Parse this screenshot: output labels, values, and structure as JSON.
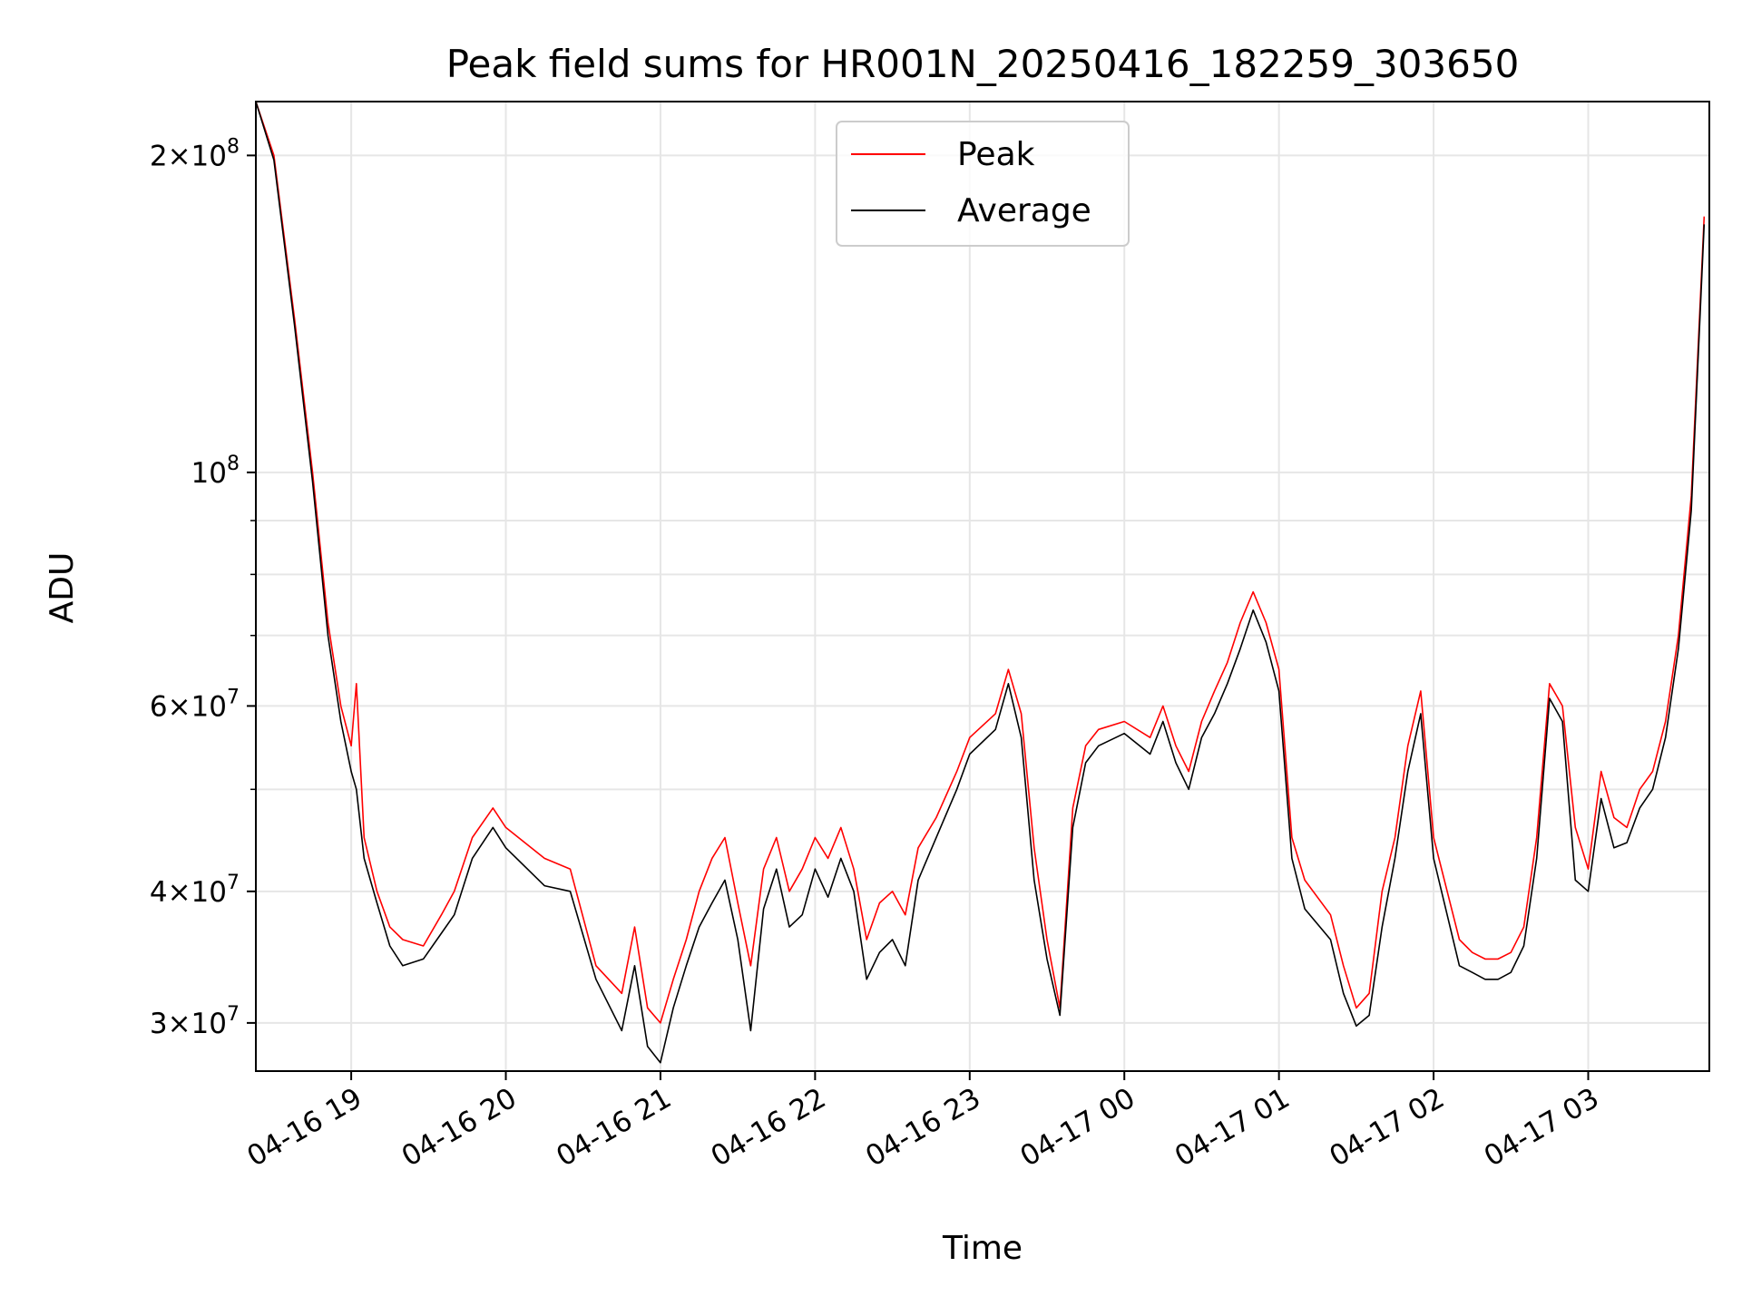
{
  "chart_data": {
    "type": "line",
    "title": "Peak field sums for HR001N_20250416_182259_303650",
    "xlabel": "Time",
    "ylabel": "ADU",
    "yscale": "log",
    "xlim": [
      "04-16 18:23",
      "04-17 03:47"
    ],
    "ylim": [
      27000000,
      225000000
    ],
    "grid": true,
    "legend_position": "top-center",
    "x_ticks": [
      "04-16 19",
      "04-16 20",
      "04-16 21",
      "04-16 22",
      "04-16 23",
      "04-17 00",
      "04-17 01",
      "04-17 02",
      "04-17 03"
    ],
    "y_ticks": [
      {
        "value": 30000000,
        "mant": "3",
        "exp": "7"
      },
      {
        "value": 40000000,
        "mant": "4",
        "exp": "7"
      },
      {
        "value": 60000000,
        "mant": "6",
        "exp": "7"
      },
      {
        "value": 100000000,
        "mant": "",
        "exp": "8"
      },
      {
        "value": 200000000,
        "mant": "2",
        "exp": "8"
      }
    ],
    "y_minor_ticks": [
      50000000,
      70000000,
      80000000,
      90000000
    ],
    "colors": {
      "peak": "#ff0000",
      "average": "#000000",
      "grid": "#e6e6e6"
    },
    "series": [
      {
        "name": "Peak",
        "color": "#ff0000",
        "x": [
          "04-16 18:23",
          "04-16 18:30",
          "04-16 18:38",
          "04-16 18:45",
          "04-16 18:51",
          "04-16 18:56",
          "04-16 19:00",
          "04-16 19:02",
          "04-16 19:05",
          "04-16 19:10",
          "04-16 19:15",
          "04-16 19:20",
          "04-16 19:28",
          "04-16 19:35",
          "04-16 19:40",
          "04-16 19:47",
          "04-16 19:55",
          "04-16 20:00",
          "04-16 20:15",
          "04-16 20:25",
          "04-16 20:35",
          "04-16 20:45",
          "04-16 20:50",
          "04-16 20:55",
          "04-16 21:00",
          "04-16 21:05",
          "04-16 21:10",
          "04-16 21:15",
          "04-16 21:20",
          "04-16 21:25",
          "04-16 21:30",
          "04-16 21:35",
          "04-16 21:40",
          "04-16 21:45",
          "04-16 21:50",
          "04-16 21:55",
          "04-16 22:00",
          "04-16 22:05",
          "04-16 22:10",
          "04-16 22:15",
          "04-16 22:20",
          "04-16 22:25",
          "04-16 22:30",
          "04-16 22:35",
          "04-16 22:40",
          "04-16 22:47",
          "04-16 22:55",
          "04-16 23:00",
          "04-16 23:10",
          "04-16 23:15",
          "04-16 23:20",
          "04-16 23:25",
          "04-16 23:30",
          "04-16 23:35",
          "04-16 23:40",
          "04-16 23:45",
          "04-16 23:50",
          "04-17 00:00",
          "04-17 00:10",
          "04-17 00:15",
          "04-17 00:20",
          "04-17 00:25",
          "04-17 00:30",
          "04-17 00:35",
          "04-17 00:40",
          "04-17 00:45",
          "04-17 00:50",
          "04-17 00:55",
          "04-17 01:00",
          "04-17 01:05",
          "04-17 01:10",
          "04-17 01:20",
          "04-17 01:25",
          "04-17 01:30",
          "04-17 01:35",
          "04-17 01:40",
          "04-17 01:45",
          "04-17 01:50",
          "04-17 01:55",
          "04-17 02:00",
          "04-17 02:10",
          "04-17 02:15",
          "04-17 02:20",
          "04-17 02:25",
          "04-17 02:30",
          "04-17 02:35",
          "04-17 02:40",
          "04-17 02:45",
          "04-17 02:50",
          "04-17 02:55",
          "04-17 03:00",
          "04-17 03:05",
          "04-17 03:10",
          "04-17 03:15",
          "04-17 03:20",
          "04-17 03:25",
          "04-17 03:30",
          "04-17 03:35",
          "04-17 03:40",
          "04-17 03:45"
        ],
        "y": [
          225000000,
          200000000,
          140000000,
          100000000,
          72000000,
          60000000,
          55000000,
          63000000,
          45000000,
          40000000,
          37000000,
          36000000,
          35500000,
          38000000,
          40000000,
          45000000,
          48000000,
          46000000,
          43000000,
          42000000,
          34000000,
          32000000,
          37000000,
          31000000,
          30000000,
          33000000,
          36000000,
          40000000,
          43000000,
          45000000,
          39000000,
          34000000,
          42000000,
          45000000,
          40000000,
          42000000,
          45000000,
          43000000,
          46000000,
          42000000,
          36000000,
          39000000,
          40000000,
          38000000,
          44000000,
          47000000,
          52000000,
          56000000,
          59000000,
          65000000,
          59000000,
          44000000,
          36000000,
          31000000,
          48000000,
          55000000,
          57000000,
          58000000,
          56000000,
          60000000,
          55000000,
          52000000,
          58000000,
          62000000,
          66000000,
          72000000,
          77000000,
          72000000,
          65000000,
          45000000,
          41000000,
          38000000,
          34000000,
          31000000,
          32000000,
          40000000,
          45000000,
          55000000,
          62000000,
          45000000,
          36000000,
          35000000,
          34500000,
          34500000,
          35000000,
          37000000,
          45000000,
          63000000,
          60000000,
          46000000,
          42000000,
          52000000,
          47000000,
          46000000,
          50000000,
          52000000,
          58000000,
          70000000,
          95000000,
          175000000
        ]
      },
      {
        "name": "Average",
        "color": "#000000",
        "x": [
          "04-16 18:23",
          "04-16 18:30",
          "04-16 18:38",
          "04-16 18:45",
          "04-16 18:51",
          "04-16 18:56",
          "04-16 19:00",
          "04-16 19:02",
          "04-16 19:05",
          "04-16 19:10",
          "04-16 19:15",
          "04-16 19:20",
          "04-16 19:28",
          "04-16 19:35",
          "04-16 19:40",
          "04-16 19:47",
          "04-16 19:55",
          "04-16 20:00",
          "04-16 20:15",
          "04-16 20:25",
          "04-16 20:35",
          "04-16 20:45",
          "04-16 20:50",
          "04-16 20:55",
          "04-16 21:00",
          "04-16 21:05",
          "04-16 21:10",
          "04-16 21:15",
          "04-16 21:20",
          "04-16 21:25",
          "04-16 21:30",
          "04-16 21:35",
          "04-16 21:40",
          "04-16 21:45",
          "04-16 21:50",
          "04-16 21:55",
          "04-16 22:00",
          "04-16 22:05",
          "04-16 22:10",
          "04-16 22:15",
          "04-16 22:20",
          "04-16 22:25",
          "04-16 22:30",
          "04-16 22:35",
          "04-16 22:40",
          "04-16 22:47",
          "04-16 22:55",
          "04-16 23:00",
          "04-16 23:10",
          "04-16 23:15",
          "04-16 23:20",
          "04-16 23:25",
          "04-16 23:30",
          "04-16 23:35",
          "04-16 23:40",
          "04-16 23:45",
          "04-16 23:50",
          "04-17 00:00",
          "04-17 00:10",
          "04-17 00:15",
          "04-17 00:20",
          "04-17 00:25",
          "04-17 00:30",
          "04-17 00:35",
          "04-17 00:40",
          "04-17 00:45",
          "04-17 00:50",
          "04-17 00:55",
          "04-17 01:00",
          "04-17 01:05",
          "04-17 01:10",
          "04-17 01:20",
          "04-17 01:25",
          "04-17 01:30",
          "04-17 01:35",
          "04-17 01:40",
          "04-17 01:45",
          "04-17 01:50",
          "04-17 01:55",
          "04-17 02:00",
          "04-17 02:10",
          "04-17 02:15",
          "04-17 02:20",
          "04-17 02:25",
          "04-17 02:30",
          "04-17 02:35",
          "04-17 02:40",
          "04-17 02:45",
          "04-17 02:50",
          "04-17 02:55",
          "04-17 03:00",
          "04-17 03:05",
          "04-17 03:10",
          "04-17 03:15",
          "04-17 03:20",
          "04-17 03:25",
          "04-17 03:30",
          "04-17 03:35",
          "04-17 03:40",
          "04-17 03:45"
        ],
        "y": [
          225000000,
          198000000,
          138000000,
          98000000,
          70000000,
          58000000,
          52000000,
          50000000,
          43000000,
          39000000,
          35500000,
          34000000,
          34500000,
          36500000,
          38000000,
          43000000,
          46000000,
          44000000,
          40500000,
          40000000,
          33000000,
          29500000,
          34000000,
          28500000,
          27500000,
          31000000,
          34000000,
          37000000,
          39000000,
          41000000,
          36000000,
          29500000,
          38500000,
          42000000,
          37000000,
          38000000,
          42000000,
          39500000,
          43000000,
          40000000,
          33000000,
          35000000,
          36000000,
          34000000,
          41000000,
          45000000,
          50000000,
          54000000,
          57000000,
          63000000,
          56000000,
          41000000,
          34500000,
          30500000,
          46000000,
          53000000,
          55000000,
          56500000,
          54000000,
          58000000,
          53000000,
          50000000,
          56000000,
          59000000,
          63000000,
          68000000,
          74000000,
          69000000,
          62000000,
          43000000,
          38500000,
          36000000,
          32000000,
          29800000,
          30500000,
          37000000,
          43000000,
          52000000,
          59000000,
          43000000,
          34000000,
          33500000,
          33000000,
          33000000,
          33500000,
          35500000,
          43000000,
          61000000,
          58000000,
          41000000,
          40000000,
          49000000,
          44000000,
          44500000,
          48000000,
          50000000,
          56000000,
          68000000,
          92000000,
          172000000
        ]
      }
    ]
  }
}
